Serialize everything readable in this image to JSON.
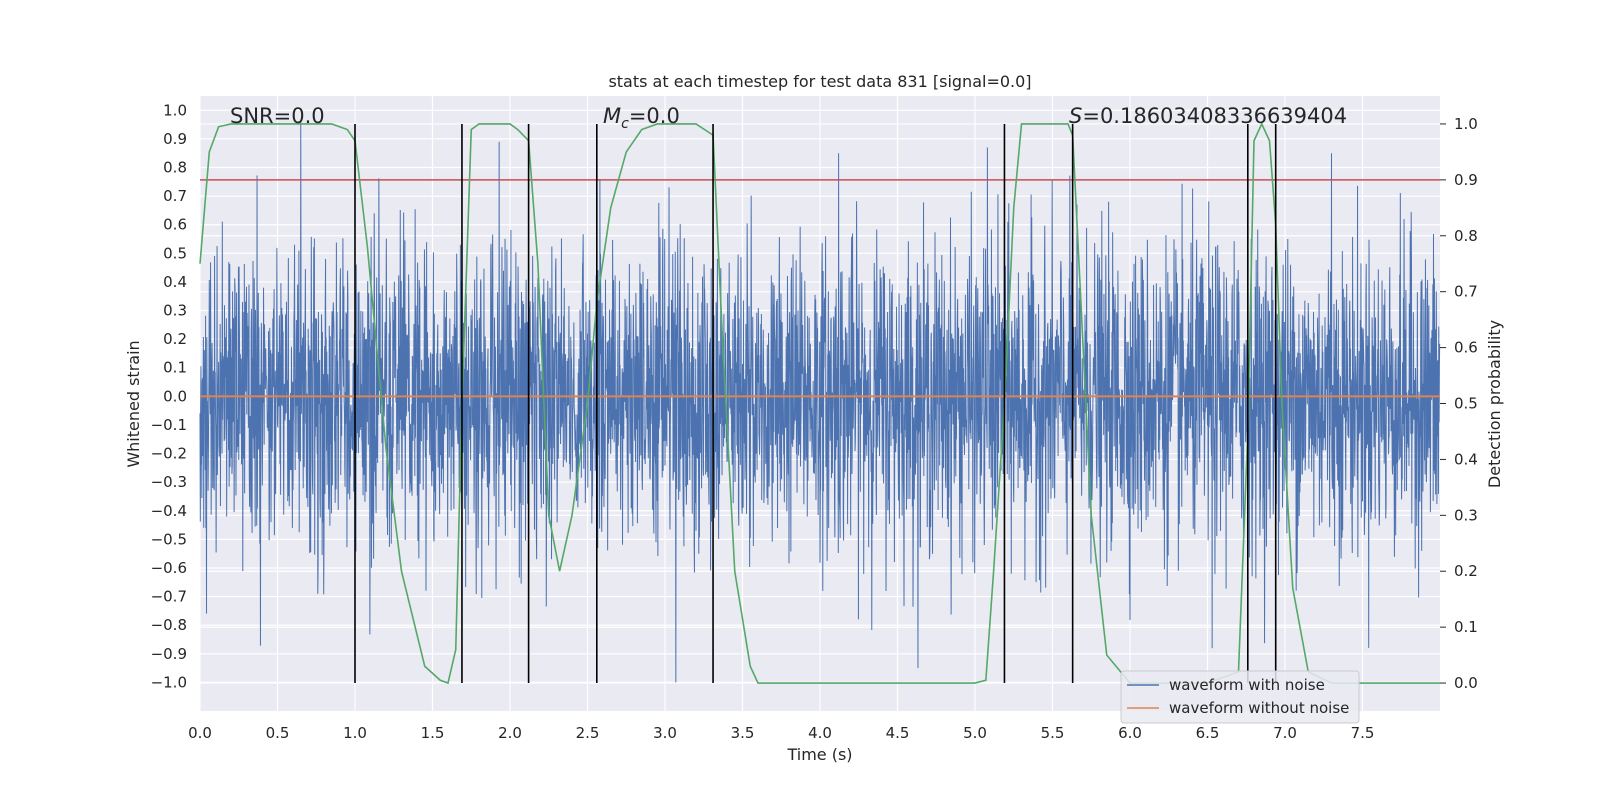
{
  "chart_data": {
    "type": "line",
    "title": "stats at each timestep for test data 831 [signal=0.0]",
    "xlabel": "Time (s)",
    "ylabel_left": "Whitened strain",
    "ylabel_right": "Detection probability",
    "xlim": [
      0.0,
      8.0
    ],
    "ylim_left": [
      -1.1,
      1.05
    ],
    "ylim_right": [
      -0.05,
      1.05
    ],
    "x_ticks": [
      "0.0",
      "0.5",
      "1.0",
      "1.5",
      "2.0",
      "2.5",
      "3.0",
      "3.5",
      "4.0",
      "4.5",
      "5.0",
      "5.5",
      "6.0",
      "6.5",
      "7.0",
      "7.5"
    ],
    "y_ticks_left": [
      "1.0",
      "0.9",
      "0.8",
      "0.7",
      "0.6",
      "0.5",
      "0.4",
      "0.3",
      "0.2",
      "0.1",
      "0.0",
      "−0.1",
      "−0.2",
      "−0.3",
      "−0.4",
      "−0.5",
      "−0.6",
      "−0.7",
      "−0.8",
      "−0.9",
      "−1.0"
    ],
    "y_ticks_right": [
      "1.0",
      "0.9",
      "0.8",
      "0.7",
      "0.6",
      "0.5",
      "0.4",
      "0.3",
      "0.2",
      "0.1",
      "0.0"
    ],
    "annotations": {
      "snr": "SNR=0.0",
      "mc_symbol": "M",
      "mc_sub": "c",
      "mc_value": "=0.0",
      "s_symbol": "S",
      "s_value": "=0.18603408336639404"
    },
    "threshold": {
      "value": 0.9,
      "axis": "right"
    },
    "detection_boundaries": [
      1.0,
      1.69,
      2.12,
      2.56,
      3.31,
      5.19,
      5.63,
      6.76,
      6.94
    ],
    "series": [
      {
        "name": "waveform with noise",
        "color": "#4c72b0",
        "axis": "left",
        "kind": "noise",
        "sigma": 0.26,
        "extremes": [
          [
            0.65,
            0.96
          ],
          [
            3.07,
            -1.0
          ],
          [
            4.12,
            0.85
          ],
          [
            5.08,
            0.87
          ],
          [
            6.53,
            -0.88
          ],
          [
            7.3,
            0.85
          ],
          [
            2.58,
            0.76
          ],
          [
            1.93,
            0.89
          ]
        ]
      },
      {
        "name": "waveform without noise",
        "color": "#dd8452",
        "axis": "left",
        "values_x": [
          0.0,
          8.0
        ],
        "values_y": [
          0.0,
          0.0
        ]
      },
      {
        "name": "detection probability",
        "color": "#55a868",
        "axis": "right",
        "x": [
          0.0,
          0.06,
          0.12,
          0.2,
          0.3,
          0.5,
          0.7,
          0.85,
          0.95,
          1.0,
          1.08,
          1.2,
          1.3,
          1.45,
          1.55,
          1.6,
          1.65,
          1.69,
          1.75,
          1.8,
          1.9,
          2.0,
          2.05,
          2.12,
          2.18,
          2.25,
          2.32,
          2.4,
          2.5,
          2.56,
          2.65,
          2.75,
          2.85,
          2.95,
          3.05,
          3.2,
          3.31,
          3.37,
          3.45,
          3.55,
          3.6,
          4.0,
          4.5,
          5.0,
          5.07,
          5.12,
          5.19,
          5.25,
          5.3,
          5.4,
          5.5,
          5.6,
          5.63,
          5.68,
          5.75,
          5.85,
          6.0,
          6.1,
          6.2,
          6.5,
          6.7,
          6.76,
          6.8,
          6.85,
          6.9,
          6.94,
          6.98,
          7.05,
          7.15,
          7.3,
          8.0
        ],
        "y": [
          0.75,
          0.95,
          0.995,
          1.0,
          1.0,
          1.0,
          1.0,
          1.0,
          0.99,
          0.97,
          0.78,
          0.42,
          0.2,
          0.03,
          0.005,
          0.0,
          0.06,
          0.5,
          0.99,
          1.0,
          1.0,
          1.0,
          0.99,
          0.97,
          0.75,
          0.3,
          0.2,
          0.3,
          0.5,
          0.68,
          0.85,
          0.95,
          0.99,
          1.0,
          1.0,
          1.0,
          0.98,
          0.62,
          0.2,
          0.03,
          0.0,
          0.0,
          0.0,
          0.0,
          0.005,
          0.2,
          0.5,
          0.85,
          1.0,
          1.0,
          1.0,
          1.0,
          0.98,
          0.7,
          0.3,
          0.05,
          0.0,
          0.0,
          0.0,
          0.0,
          0.02,
          0.45,
          0.97,
          1.0,
          0.97,
          0.82,
          0.5,
          0.17,
          0.02,
          0.0,
          0.0
        ]
      }
    ],
    "legend_position": "lower right",
    "grid": true
  }
}
